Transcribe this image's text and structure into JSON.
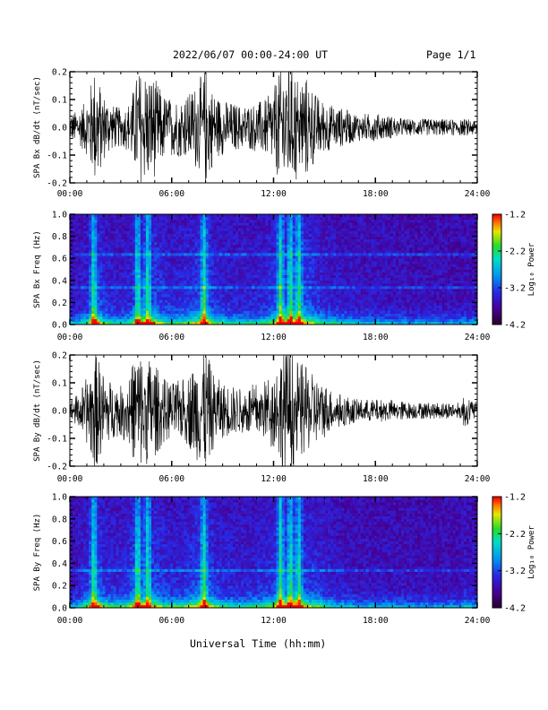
{
  "header": {
    "title": "2022/06/07  00:00-24:00 UT",
    "page": "Page 1/1"
  },
  "footer": {
    "xlabel": "Universal Time (hh:mm)"
  },
  "chart_data": [
    {
      "type": "line",
      "ylabel": "SPA Bx dB/dt (nT/sec)",
      "xlim": [
        0,
        24
      ],
      "ylim": [
        -0.2,
        0.2
      ],
      "yticks": [
        "-0.2",
        "-0.1",
        "0.0",
        "0.1",
        "0.2"
      ],
      "xticks": [
        "00:00",
        "06:00",
        "12:00",
        "18:00",
        "24:00"
      ],
      "series": [
        {
          "envelope": [
            [
              0.0,
              0.05
            ],
            [
              0.5,
              0.06
            ],
            [
              1.0,
              0.1
            ],
            [
              1.5,
              0.22
            ],
            [
              2.0,
              0.12
            ],
            [
              2.5,
              0.08
            ],
            [
              3.0,
              0.07
            ],
            [
              3.5,
              0.09
            ],
            [
              4.0,
              0.2
            ],
            [
              4.5,
              0.2
            ],
            [
              5.0,
              0.18
            ],
            [
              5.5,
              0.12
            ],
            [
              6.0,
              0.1
            ],
            [
              6.5,
              0.11
            ],
            [
              7.0,
              0.12
            ],
            [
              7.5,
              0.16
            ],
            [
              8.0,
              0.22
            ],
            [
              8.5,
              0.12
            ],
            [
              9.0,
              0.1
            ],
            [
              9.5,
              0.09
            ],
            [
              10.0,
              0.08
            ],
            [
              10.5,
              0.08
            ],
            [
              11.0,
              0.09
            ],
            [
              11.5,
              0.1
            ],
            [
              12.0,
              0.14
            ],
            [
              12.5,
              0.22
            ],
            [
              13.0,
              0.22
            ],
            [
              13.5,
              0.2
            ],
            [
              14.0,
              0.18
            ],
            [
              14.5,
              0.12
            ],
            [
              15.0,
              0.09
            ],
            [
              15.5,
              0.08
            ],
            [
              16.0,
              0.07
            ],
            [
              16.5,
              0.06
            ],
            [
              17.0,
              0.05
            ],
            [
              18.0,
              0.05
            ],
            [
              19.0,
              0.04
            ],
            [
              20.0,
              0.03
            ],
            [
              21.0,
              0.03
            ],
            [
              22.0,
              0.03
            ],
            [
              23.0,
              0.03
            ],
            [
              24.0,
              0.03
            ]
          ]
        }
      ]
    },
    {
      "type": "heatmap",
      "ylabel": "SPA Bx Freq (Hz)",
      "xlim": [
        0,
        24
      ],
      "ylim": [
        0,
        1
      ],
      "yticks": [
        "0.0",
        "0.2",
        "0.4",
        "0.6",
        "0.8",
        "1.0"
      ],
      "xticks": [
        "00:00",
        "06:00",
        "12:00",
        "18:00",
        "24:00"
      ],
      "colorbar": {
        "label": "Log₁₀ Power",
        "range": [
          -4.2,
          -1.2
        ],
        "ticks": [
          "-1.2",
          "-2.2",
          "-3.2",
          "-4.2"
        ]
      },
      "bright_bands_hours": [
        1.4,
        4.0,
        4.6,
        7.9,
        12.4,
        13.0,
        13.5
      ],
      "horizontal_line_hz": [
        0.63,
        0.33
      ]
    },
    {
      "type": "line",
      "ylabel": "SPA By dB/dt (nT/sec)",
      "xlim": [
        0,
        24
      ],
      "ylim": [
        -0.2,
        0.2
      ],
      "yticks": [
        "-0.2",
        "-0.1",
        "0.0",
        "0.1",
        "0.2"
      ],
      "xticks": [
        "00:00",
        "06:00",
        "12:00",
        "18:00",
        "24:00"
      ],
      "series": [
        {
          "envelope": [
            [
              0.0,
              0.04
            ],
            [
              0.5,
              0.06
            ],
            [
              1.0,
              0.12
            ],
            [
              1.5,
              0.22
            ],
            [
              2.0,
              0.13
            ],
            [
              2.5,
              0.1
            ],
            [
              3.0,
              0.09
            ],
            [
              3.5,
              0.14
            ],
            [
              4.0,
              0.22
            ],
            [
              4.5,
              0.2
            ],
            [
              5.0,
              0.17
            ],
            [
              5.5,
              0.12
            ],
            [
              6.0,
              0.1
            ],
            [
              6.5,
              0.11
            ],
            [
              7.0,
              0.13
            ],
            [
              7.5,
              0.18
            ],
            [
              8.0,
              0.22
            ],
            [
              8.5,
              0.13
            ],
            [
              9.0,
              0.1
            ],
            [
              9.5,
              0.09
            ],
            [
              10.0,
              0.08
            ],
            [
              10.5,
              0.09
            ],
            [
              11.0,
              0.1
            ],
            [
              11.5,
              0.11
            ],
            [
              12.0,
              0.14
            ],
            [
              12.5,
              0.22
            ],
            [
              13.0,
              0.22
            ],
            [
              13.5,
              0.18
            ],
            [
              14.0,
              0.15
            ],
            [
              14.5,
              0.12
            ],
            [
              15.0,
              0.1
            ],
            [
              15.5,
              0.07
            ],
            [
              16.0,
              0.06
            ],
            [
              16.5,
              0.05
            ],
            [
              17.0,
              0.04
            ],
            [
              18.0,
              0.04
            ],
            [
              19.0,
              0.04
            ],
            [
              20.0,
              0.03
            ],
            [
              21.0,
              0.03
            ],
            [
              22.0,
              0.03
            ],
            [
              23.0,
              0.03
            ],
            [
              23.2,
              0.06
            ],
            [
              24.0,
              0.03
            ]
          ]
        }
      ]
    },
    {
      "type": "heatmap",
      "ylabel": "SPA By Freq (Hz)",
      "xlim": [
        0,
        24
      ],
      "ylim": [
        0,
        1
      ],
      "yticks": [
        "0.0",
        "0.2",
        "0.4",
        "0.6",
        "0.8",
        "1.0"
      ],
      "xticks": [
        "00:00",
        "06:00",
        "12:00",
        "18:00",
        "24:00"
      ],
      "colorbar": {
        "label": "Log₁₀ Power",
        "range": [
          -4.2,
          -1.2
        ],
        "ticks": [
          "-1.2",
          "-2.2",
          "-3.2",
          "-4.2"
        ]
      },
      "bright_bands_hours": [
        1.4,
        4.0,
        4.6,
        7.9,
        12.4,
        13.0,
        13.5
      ],
      "horizontal_line_hz": [
        0.33
      ]
    }
  ]
}
